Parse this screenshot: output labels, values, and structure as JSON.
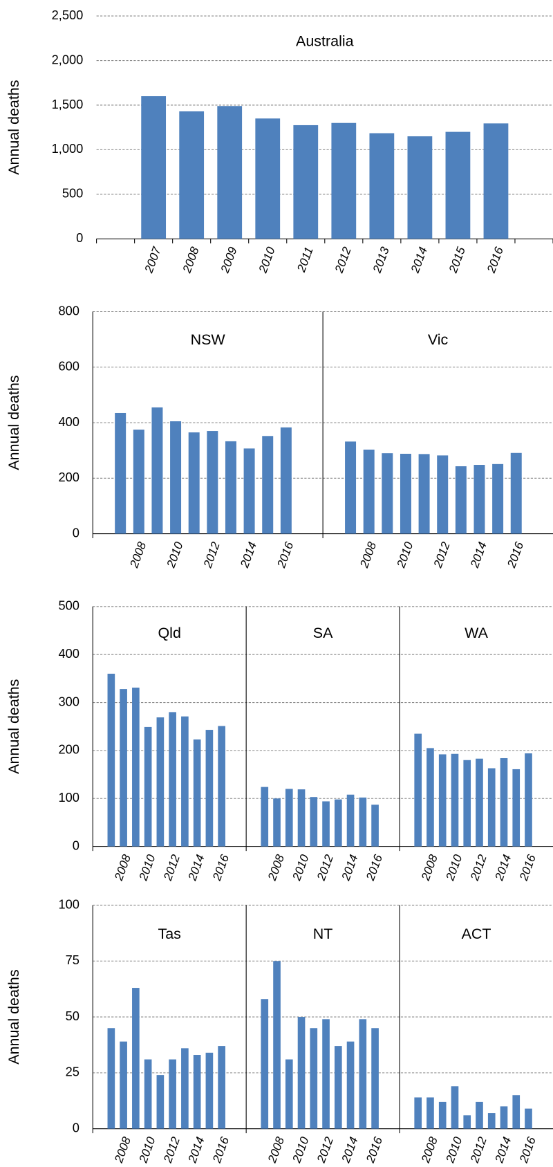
{
  "chart_data": [
    {
      "type": "bar",
      "y_label": "Annual deaths",
      "color": "#4f81bd",
      "grid": true,
      "ylim": [
        0,
        2500
      ],
      "yticks": [
        0,
        500,
        {
          "value": 1000,
          "label": "1,000"
        },
        {
          "value": 1500,
          "label": "1,500"
        },
        {
          "value": 2000,
          "label": "2,000"
        },
        {
          "value": 2500,
          "label": "2,500"
        }
      ],
      "panels": [
        {
          "title": "Australia",
          "categories": [
            "2007",
            "2008",
            "2009",
            "2010",
            "2011",
            "2012",
            "2013",
            "2014",
            "2015",
            "2016"
          ],
          "values": [
            1600,
            1430,
            1490,
            1350,
            1275,
            1300,
            1185,
            1150,
            1200,
            1295
          ]
        }
      ]
    },
    {
      "type": "bar",
      "y_label": "Annual deaths",
      "color": "#4f81bd",
      "grid": true,
      "ylim": [
        0,
        800
      ],
      "yticks": [
        0,
        200,
        400,
        600,
        800
      ],
      "panels": [
        {
          "title": "NSW",
          "categories": [
            null,
            "2008",
            null,
            "2010",
            null,
            "2012",
            null,
            "2014",
            null,
            "2016"
          ],
          "values": [
            435,
            375,
            455,
            405,
            365,
            370,
            333,
            307,
            352,
            383
          ]
        },
        {
          "title": "Vic",
          "categories": [
            null,
            "2008",
            null,
            "2010",
            null,
            "2012",
            null,
            "2014",
            null,
            "2016"
          ],
          "values": [
            332,
            303,
            290,
            288,
            287,
            282,
            243,
            248,
            251,
            291
          ]
        }
      ]
    },
    {
      "type": "bar",
      "y_label": "Annual deaths",
      "color": "#4f81bd",
      "grid": true,
      "ylim": [
        0,
        500
      ],
      "yticks": [
        0,
        100,
        200,
        300,
        400,
        500
      ],
      "panels": [
        {
          "title": "Qld",
          "categories": [
            null,
            "2008",
            null,
            "2010",
            null,
            "2012",
            null,
            "2014",
            null,
            "2016"
          ],
          "values": [
            360,
            328,
            331,
            249,
            269,
            280,
            271,
            223,
            243,
            251
          ]
        },
        {
          "title": "SA",
          "categories": [
            null,
            "2008",
            null,
            "2010",
            null,
            "2012",
            null,
            "2014",
            null,
            "2016"
          ],
          "values": [
            124,
            100,
            120,
            119,
            103,
            94,
            98,
            108,
            102,
            87
          ]
        },
        {
          "title": "WA",
          "categories": [
            null,
            "2008",
            null,
            "2010",
            null,
            "2012",
            null,
            "2014",
            null,
            "2016"
          ],
          "values": [
            235,
            205,
            192,
            193,
            180,
            183,
            163,
            184,
            161,
            194
          ]
        }
      ]
    },
    {
      "type": "bar",
      "y_label": "Annual deaths",
      "color": "#4f81bd",
      "grid": true,
      "ylim": [
        0,
        100
      ],
      "yticks": [
        0,
        25,
        50,
        75,
        100
      ],
      "panels": [
        {
          "title": "Tas",
          "categories": [
            null,
            "2008",
            null,
            "2010",
            null,
            "2012",
            null,
            "2014",
            null,
            "2016"
          ],
          "values": [
            45,
            39,
            63,
            31,
            24,
            31,
            36,
            33,
            34,
            37
          ]
        },
        {
          "title": "NT",
          "categories": [
            null,
            "2008",
            null,
            "2010",
            null,
            "2012",
            null,
            "2014",
            null,
            "2016"
          ],
          "values": [
            58,
            75,
            31,
            50,
            45,
            49,
            37,
            39,
            49,
            45
          ]
        },
        {
          "title": "ACT",
          "categories": [
            null,
            "2008",
            null,
            "2010",
            null,
            "2012",
            null,
            "2014",
            null,
            "2016"
          ],
          "values": [
            14,
            14,
            12,
            19,
            6,
            12,
            7,
            10,
            15,
            9
          ]
        }
      ]
    }
  ]
}
